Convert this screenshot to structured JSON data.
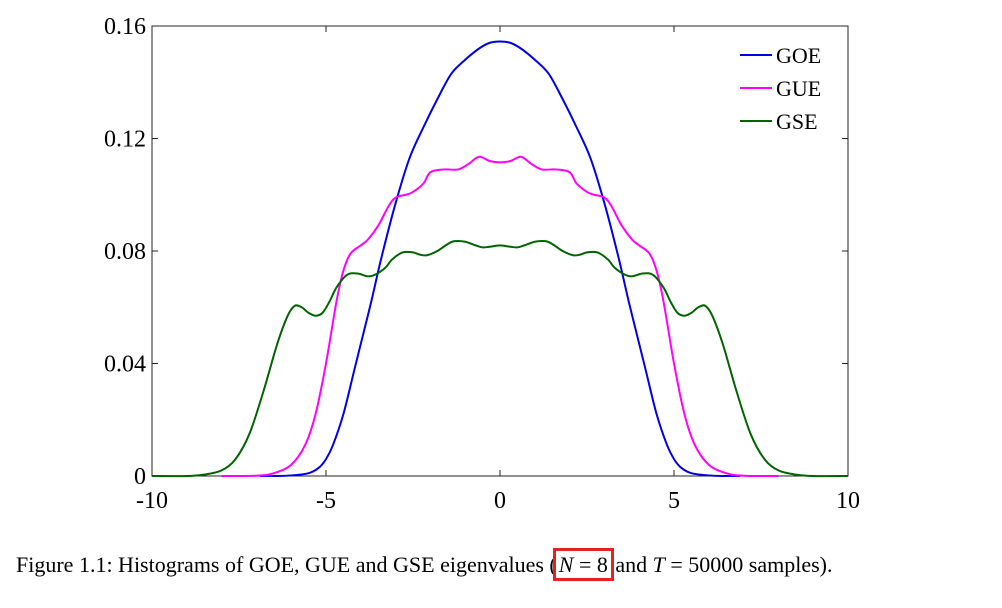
{
  "chart_data": {
    "type": "line",
    "title": "",
    "xlabel": "",
    "ylabel": "",
    "xlim": [
      -10,
      10
    ],
    "ylim": [
      0,
      0.16
    ],
    "xticks": [
      -10,
      -5,
      0,
      5,
      10
    ],
    "xtick_labels": [
      "-10",
      "-5",
      "0",
      "5",
      "10"
    ],
    "yticks": [
      0,
      0.04,
      0.08,
      0.12,
      0.16
    ],
    "ytick_labels": [
      "0",
      "0.04",
      "0.08",
      "0.12",
      "0.16"
    ],
    "grid": false,
    "legend_position": "top-right",
    "series": [
      {
        "name": "GOE",
        "color": "#0000e6",
        "x": [
          -6.9,
          -6.5,
          -6,
          -5.5,
          -5.2,
          -5,
          -4.8,
          -4.5,
          -4.2,
          -4,
          -3.7,
          -3.4,
          -3,
          -2.6,
          -2.2,
          -1.8,
          -1.4,
          -1,
          -0.6,
          -0.3,
          0,
          0.3,
          0.6,
          1,
          1.4,
          1.8,
          2.2,
          2.6,
          3,
          3.4,
          3.7,
          4,
          4.2,
          4.5,
          4.8,
          5,
          5.2,
          5.5,
          6,
          6.5,
          6.9
        ],
        "y": [
          0,
          0,
          0.0002,
          0.001,
          0.003,
          0.006,
          0.011,
          0.022,
          0.037,
          0.047,
          0.062,
          0.078,
          0.097,
          0.113,
          0.124,
          0.134,
          0.143,
          0.148,
          0.152,
          0.154,
          0.1545,
          0.154,
          0.152,
          0.148,
          0.143,
          0.134,
          0.124,
          0.113,
          0.097,
          0.078,
          0.062,
          0.047,
          0.037,
          0.022,
          0.011,
          0.006,
          0.003,
          0.001,
          0.0002,
          0,
          0
        ]
      },
      {
        "name": "GUE",
        "color": "#ff00ff",
        "x": [
          -8,
          -7,
          -6.5,
          -6,
          -5.6,
          -5.3,
          -5,
          -4.7,
          -4.5,
          -4.3,
          -4,
          -3.8,
          -3.5,
          -3.2,
          -3,
          -2.7,
          -2.5,
          -2.2,
          -2,
          -1.6,
          -1.2,
          -0.9,
          -0.6,
          -0.3,
          0,
          0.3,
          0.6,
          0.9,
          1.2,
          1.6,
          2,
          2.2,
          2.5,
          2.7,
          3,
          3.2,
          3.5,
          3.8,
          4,
          4.3,
          4.5,
          4.7,
          5,
          5.3,
          5.6,
          6,
          6.5,
          7,
          8
        ],
        "y": [
          0,
          0.0001,
          0.001,
          0.004,
          0.011,
          0.022,
          0.04,
          0.062,
          0.073,
          0.079,
          0.082,
          0.084,
          0.089,
          0.096,
          0.099,
          0.1,
          0.101,
          0.104,
          0.108,
          0.109,
          0.109,
          0.111,
          0.1135,
          0.112,
          0.1115,
          0.112,
          0.1135,
          0.111,
          0.109,
          0.109,
          0.108,
          0.104,
          0.101,
          0.1,
          0.099,
          0.096,
          0.089,
          0.084,
          0.082,
          0.079,
          0.073,
          0.062,
          0.04,
          0.022,
          0.011,
          0.004,
          0.001,
          0.0001,
          0
        ]
      },
      {
        "name": "GSE",
        "color": "#006400",
        "x": [
          -10,
          -9,
          -8.5,
          -8,
          -7.6,
          -7.2,
          -6.8,
          -6.4,
          -6.1,
          -5.9,
          -5.7,
          -5.5,
          -5.3,
          -5.1,
          -4.9,
          -4.7,
          -4.4,
          -4.1,
          -3.8,
          -3.6,
          -3.3,
          -3.1,
          -2.8,
          -2.5,
          -2.3,
          -2.1,
          -1.8,
          -1.5,
          -1.3,
          -1,
          -0.7,
          -0.5,
          -0.3,
          0,
          0.3,
          0.5,
          0.7,
          1,
          1.3,
          1.5,
          1.8,
          2.1,
          2.3,
          2.5,
          2.8,
          3.1,
          3.3,
          3.6,
          3.8,
          4.1,
          4.4,
          4.7,
          4.9,
          5.1,
          5.3,
          5.5,
          5.7,
          5.9,
          6.1,
          6.4,
          6.8,
          7.2,
          7.6,
          8,
          8.5,
          9,
          10
        ],
        "y": [
          0,
          0,
          0.0005,
          0.002,
          0.006,
          0.015,
          0.03,
          0.047,
          0.057,
          0.0605,
          0.06,
          0.058,
          0.057,
          0.058,
          0.062,
          0.067,
          0.0715,
          0.072,
          0.071,
          0.0715,
          0.074,
          0.077,
          0.0795,
          0.0795,
          0.0787,
          0.0785,
          0.08,
          0.0825,
          0.0835,
          0.0833,
          0.082,
          0.0813,
          0.0815,
          0.082,
          0.0815,
          0.0813,
          0.082,
          0.0833,
          0.0835,
          0.0825,
          0.08,
          0.0785,
          0.0787,
          0.0795,
          0.0795,
          0.077,
          0.074,
          0.0715,
          0.071,
          0.072,
          0.0715,
          0.067,
          0.062,
          0.058,
          0.057,
          0.058,
          0.06,
          0.0605,
          0.057,
          0.047,
          0.03,
          0.015,
          0.006,
          0.002,
          0.0005,
          0,
          0
        ]
      }
    ]
  },
  "caption": {
    "prefix": "Figure 1.1: Histograms of GOE, GUE and GSE eigenvalues (",
    "n_symbol": "N",
    "n_equals": " = 8",
    "middle": " and ",
    "t_symbol": "T",
    "suffix": " = 50000 samples)."
  }
}
